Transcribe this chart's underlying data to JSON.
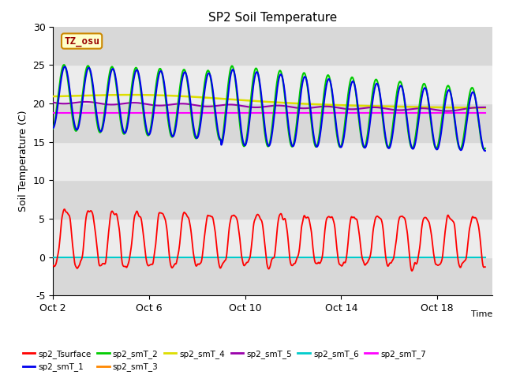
{
  "title": "SP2 Soil Temperature",
  "xlabel": "Time",
  "ylabel": "Soil Temperature (C)",
  "annotation": "TZ_osu",
  "annotation_color": "#990000",
  "annotation_bg": "#ffffcc",
  "annotation_border": "#cc8800",
  "background_color": "#ffffff",
  "plot_bg_dark": "#d8d8d8",
  "plot_bg_light": "#eeeeee",
  "ylim": [
    -5,
    30
  ],
  "x_ticks": [
    "Oct 2",
    "Oct 6",
    "Oct 10",
    "Oct 14",
    "Oct 18"
  ],
  "legend": [
    {
      "label": "sp2_Tsurface",
      "color": "#ff0000"
    },
    {
      "label": "sp2_smT_1",
      "color": "#0000ee"
    },
    {
      "label": "sp2_smT_2",
      "color": "#00cc00"
    },
    {
      "label": "sp2_smT_3",
      "color": "#ff8800"
    },
    {
      "label": "sp2_smT_4",
      "color": "#dddd00"
    },
    {
      "label": "sp2_smT_5",
      "color": "#9900aa"
    },
    {
      "label": "sp2_smT_6",
      "color": "#00cccc"
    },
    {
      "label": "sp2_smT_7",
      "color": "#ff00ff"
    }
  ]
}
